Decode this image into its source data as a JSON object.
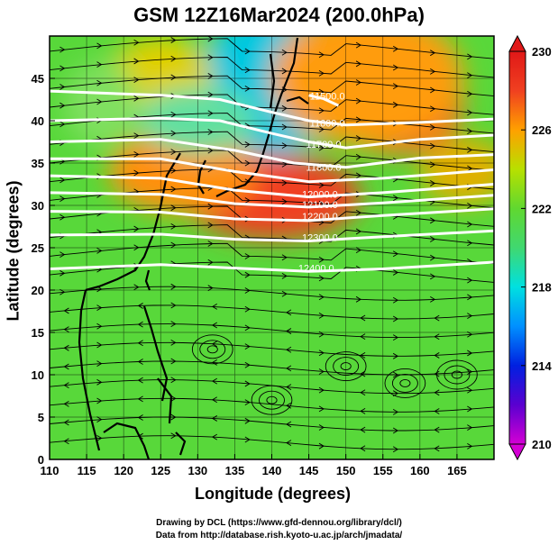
{
  "title": "GSM 12Z16Mar2024 (200.0hPa)",
  "x_axis": {
    "label": "Longitude (degrees)",
    "ticks": [
      "110",
      "115",
      "120",
      "125",
      "130",
      "135",
      "140",
      "145",
      "150",
      "155",
      "160",
      "165"
    ],
    "range": [
      110,
      170
    ]
  },
  "y_axis": {
    "label": "Latitude  (degrees)",
    "ticks": [
      "0",
      "5",
      "10",
      "15",
      "20",
      "25",
      "30",
      "35",
      "40",
      "45"
    ],
    "range": [
      0,
      50
    ]
  },
  "colorbar": {
    "ticks": [
      "210",
      "214",
      "218",
      "222",
      "226",
      "230"
    ],
    "range": [
      210,
      230
    ],
    "colors": [
      "#d400d4",
      "#5a00d0",
      "#0020e0",
      "#0090ff",
      "#00e0e0",
      "#40d870",
      "#60d830",
      "#b8e000",
      "#ffa000",
      "#f04020",
      "#e01818"
    ]
  },
  "contour_labels": [
    "11500.0",
    "11600.0",
    "11700.0",
    "11800.0",
    "11900.0",
    "12000.0",
    "12100.0",
    "12200.0",
    "12300.0",
    "12400.0"
  ],
  "credits": {
    "line1": "Drawing by DCL (https://www.gfd-dennou.org/library/dcl/)",
    "line2": "Data from http://database.rish.kyoto-u.ac.jp/arch/jmadata/"
  },
  "chart_data": {
    "type": "heatmap",
    "variable": "temperature field with geopotential height contours and wind streamlines",
    "title": "GSM 12Z16Mar2024 (200.0hPa)",
    "xlabel": "Longitude (degrees)",
    "ylabel": "Latitude  (degrees)",
    "xlim": [
      110,
      170
    ],
    "ylim": [
      0,
      50
    ],
    "colorbar_range": [
      210,
      230
    ],
    "contours": [
      {
        "label": "11500.0",
        "points": [
          [
            145,
            43
          ],
          [
            147,
            42.6
          ],
          [
            149,
            41.8
          ]
        ]
      },
      {
        "label": "11600.0",
        "points": [
          [
            110,
            43.5
          ],
          [
            125,
            43
          ],
          [
            133,
            42.5
          ],
          [
            140,
            41
          ],
          [
            145,
            40
          ],
          [
            150,
            39.5
          ],
          [
            160,
            39.8
          ],
          [
            170,
            40.2
          ]
        ]
      },
      {
        "label": "11700.0",
        "points": [
          [
            110,
            40
          ],
          [
            125,
            40.3
          ],
          [
            133,
            40
          ],
          [
            140,
            38.5
          ],
          [
            145,
            37.5
          ],
          [
            150,
            36.8
          ],
          [
            160,
            37.8
          ],
          [
            170,
            38.3
          ]
        ]
      },
      {
        "label": "11800.0",
        "points": [
          [
            110,
            37.5
          ],
          [
            125,
            37.8
          ],
          [
            135,
            36.5
          ],
          [
            143,
            35
          ],
          [
            150,
            34.5
          ],
          [
            160,
            35.6
          ],
          [
            170,
            36
          ]
        ]
      },
      {
        "label": "11900.0",
        "points": [
          [
            110,
            35.5
          ],
          [
            125,
            35.5
          ],
          [
            135,
            34
          ],
          [
            145,
            32.8
          ],
          [
            155,
            33.2
          ],
          [
            170,
            34.2
          ]
        ]
      },
      {
        "label": "12000.0",
        "points": [
          [
            110,
            33.5
          ],
          [
            125,
            33.2
          ],
          [
            135,
            31.8
          ],
          [
            145,
            31
          ],
          [
            155,
            31.5
          ],
          [
            170,
            32.5
          ]
        ]
      },
      {
        "label": "12100.0",
        "points": [
          [
            110,
            31.5
          ],
          [
            125,
            31.3
          ],
          [
            135,
            30.2
          ],
          [
            145,
            29.8
          ],
          [
            155,
            30.3
          ],
          [
            170,
            31.2
          ]
        ]
      },
      {
        "label": "12200.0",
        "points": [
          [
            110,
            29.3
          ],
          [
            125,
            29.2
          ],
          [
            135,
            28.4
          ],
          [
            145,
            28.2
          ],
          [
            155,
            28.8
          ],
          [
            170,
            29.6
          ]
        ]
      },
      {
        "label": "12300.0",
        "points": [
          [
            110,
            26.5
          ],
          [
            125,
            26.6
          ],
          [
            135,
            26
          ],
          [
            145,
            25.8
          ],
          [
            155,
            26.3
          ],
          [
            170,
            27
          ]
        ]
      },
      {
        "label": "12400.0",
        "points": [
          [
            110,
            22.5
          ],
          [
            125,
            23
          ],
          [
            135,
            22.6
          ],
          [
            145,
            22.2
          ],
          [
            155,
            22.5
          ],
          [
            170,
            23.3
          ]
        ]
      }
    ],
    "contour_label_positions": [
      {
        "label": "11500.0",
        "lon": 147.5,
        "lat": 42.5
      },
      {
        "label": "11600.0",
        "lon": 147.5,
        "lat": 39.3
      },
      {
        "label": "11700.0",
        "lon": 147.0,
        "lat": 36.8
      },
      {
        "label": "11800.0",
        "lon": 147.0,
        "lat": 34.1
      },
      {
        "label": "12000.0",
        "lon": 146.5,
        "lat": 30.9
      },
      {
        "label": "12100.0",
        "lon": 146.5,
        "lat": 29.7
      },
      {
        "label": "12200.0",
        "lon": 146.5,
        "lat": 28.3
      },
      {
        "label": "12300.0",
        "lon": 146.5,
        "lat": 25.8
      },
      {
        "label": "12400.0",
        "lon": 146.0,
        "lat": 22.2
      }
    ],
    "color_regions": [
      {
        "lon": 140,
        "lat": 43,
        "rx": 5,
        "ry": 6,
        "color": "#1030d0"
      },
      {
        "lon": 139,
        "lat": 44,
        "rx": 9,
        "ry": 9,
        "color": "#00c8e0"
      },
      {
        "lon": 157,
        "lat": 42,
        "rx": 9,
        "ry": 6,
        "color": "#f05a20"
      },
      {
        "lon": 153,
        "lat": 45,
        "rx": 13,
        "ry": 8,
        "color": "#ff9c10"
      },
      {
        "lon": 140,
        "lat": 31,
        "rx": 12,
        "ry": 5,
        "color": "#f04020"
      },
      {
        "lon": 128,
        "lat": 34,
        "rx": 10,
        "ry": 5,
        "color": "#ff9010"
      },
      {
        "lon": 122,
        "lat": 44,
        "rx": 5,
        "ry": 3,
        "color": "#f0a020"
      },
      {
        "lon": 125,
        "lat": 45,
        "rx": 7,
        "ry": 5,
        "color": "#e0d000"
      },
      {
        "lon": 117,
        "lat": 42,
        "rx": 5,
        "ry": 5,
        "color": "#80e060"
      },
      {
        "lon": 130,
        "lat": 40,
        "rx": 8,
        "ry": 4,
        "color": "#60e0a0"
      },
      {
        "lon": 166,
        "lat": 34,
        "rx": 6,
        "ry": 4,
        "color": "#e0b000"
      }
    ]
  }
}
